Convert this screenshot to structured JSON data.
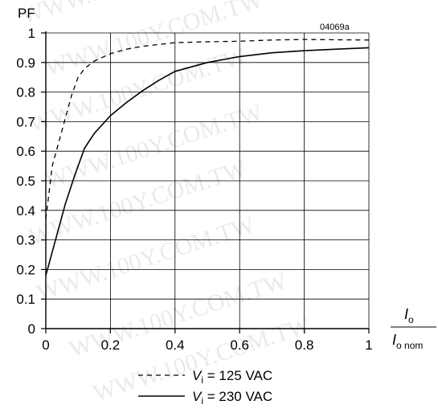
{
  "chart_data": {
    "type": "line",
    "ylabel": "PF",
    "figure_code": "04069a",
    "watermark": "WWW.100Y.COM.TW",
    "xlabel": {
      "num_main": "I",
      "num_sub": "o",
      "den_main": "I",
      "den_sub": "o nom"
    },
    "xlim": [
      0,
      1
    ],
    "ylim": [
      0,
      1
    ],
    "x_ticks": [
      "0",
      "0.2",
      "0.4",
      "0.6",
      "0.8",
      "1"
    ],
    "y_ticks": [
      "0",
      "0.1",
      "0.2",
      "0.3",
      "0.4",
      "0.5",
      "0.6",
      "0.7",
      "0.8",
      "0.9",
      "1"
    ],
    "grid": true,
    "legend_position": "bottom",
    "series": [
      {
        "name": "V_i = 125 VAC",
        "legend": {
          "var": "V",
          "sub": "i",
          "rest": " = 125 VAC"
        },
        "style": "dashed",
        "x": [
          0,
          0.02,
          0.05,
          0.08,
          0.1,
          0.12,
          0.15,
          0.2,
          0.25,
          0.3,
          0.4,
          0.5,
          0.6,
          0.7,
          0.8,
          0.9,
          1.0
        ],
        "y": [
          0.37,
          0.55,
          0.67,
          0.79,
          0.85,
          0.88,
          0.905,
          0.93,
          0.945,
          0.955,
          0.967,
          0.97,
          0.972,
          0.976,
          0.978,
          0.977,
          0.976
        ]
      },
      {
        "name": "V_i = 230 VAC",
        "legend": {
          "var": "V",
          "sub": "i",
          "rest": " = 230 VAC"
        },
        "style": "solid",
        "x": [
          0,
          0.03,
          0.06,
          0.09,
          0.12,
          0.15,
          0.2,
          0.25,
          0.3,
          0.35,
          0.4,
          0.5,
          0.6,
          0.7,
          0.8,
          0.9,
          1.0
        ],
        "y": [
          0.18,
          0.3,
          0.42,
          0.52,
          0.61,
          0.66,
          0.72,
          0.765,
          0.805,
          0.84,
          0.87,
          0.9,
          0.92,
          0.933,
          0.94,
          0.945,
          0.95
        ]
      }
    ]
  }
}
